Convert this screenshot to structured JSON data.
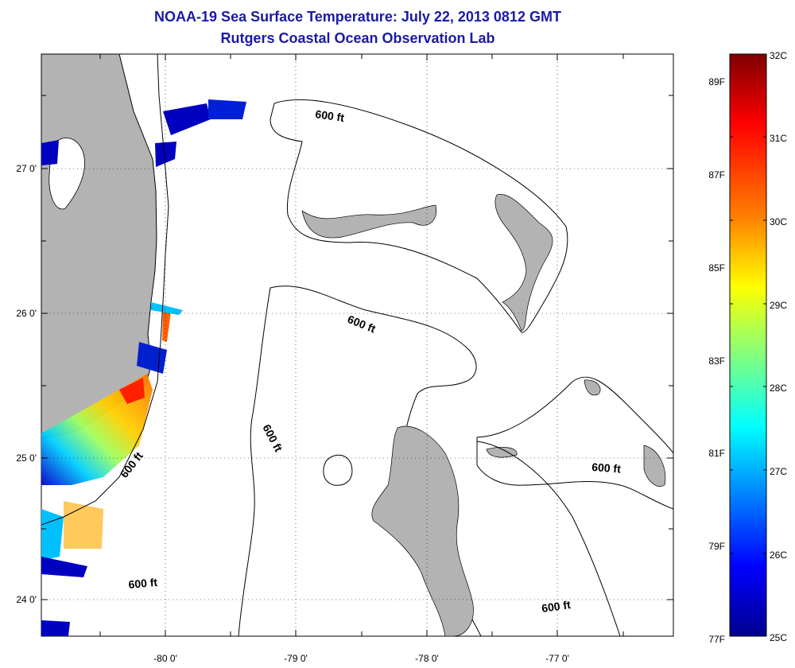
{
  "header": {
    "title": "NOAA-19 Sea Surface Temperature:  July 22, 2013 0812 GMT",
    "subtitle": "Rutgers Coastal Ocean Observation Lab"
  },
  "map": {
    "longitude_ticks": [
      "-80 0'",
      "-79 0'",
      "-78 0'",
      "-77 0'"
    ],
    "latitude_ticks": [
      "27 0'",
      "26 0'",
      "25 0'",
      "24 0'"
    ],
    "lon_range": [
      -80.95,
      -76.0
    ],
    "lat_range": [
      23.75,
      27.75
    ],
    "contour_label": "600 ft",
    "land_color": "#b3b3b3",
    "coast_color": "#000000"
  },
  "colorbar": {
    "celsius_labels": [
      "32C",
      "31C",
      "30C",
      "29C",
      "28C",
      "27C",
      "26C",
      "25C"
    ],
    "fahrenheit_labels": [
      "89F",
      "87F",
      "85F",
      "83F",
      "81F",
      "79F",
      "77F"
    ],
    "min_c": 25,
    "max_c": 32,
    "gradient_colors": [
      "#7f0000",
      "#ff0000",
      "#ff8000",
      "#ffff00",
      "#80ff80",
      "#00ffff",
      "#0080ff",
      "#0000ff",
      "#00008f"
    ]
  }
}
